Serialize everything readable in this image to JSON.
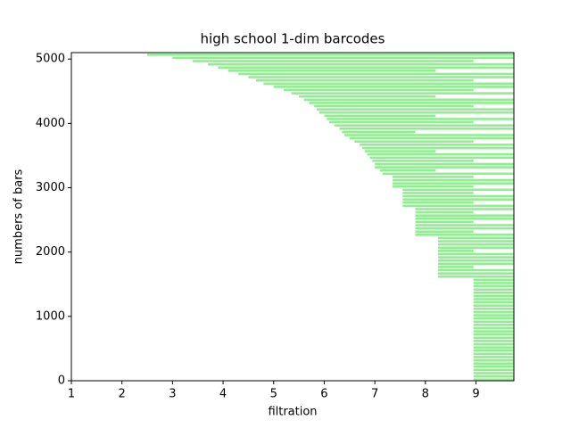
{
  "chart_data": {
    "type": "barcode",
    "title": "high school 1-dim barcodes",
    "x_label": "filtration",
    "y_label": "numbers of bars",
    "color": "#90ee90",
    "xlim": [
      1,
      9.75
    ],
    "ylim": [
      0,
      5100
    ],
    "xticks": [
      1,
      2,
      3,
      4,
      5,
      6,
      7,
      8,
      9
    ],
    "yticks": [
      0,
      1000,
      2000,
      3000,
      4000,
      5000
    ],
    "y": [
      0,
      50,
      100,
      150,
      200,
      250,
      300,
      350,
      400,
      450,
      500,
      550,
      600,
      650,
      700,
      750,
      800,
      850,
      900,
      950,
      1000,
      1050,
      1100,
      1150,
      1200,
      1250,
      1300,
      1350,
      1400,
      1450,
      1500,
      1550,
      1600,
      1650,
      1700,
      1750,
      1800,
      1850,
      1900,
      1950,
      2000,
      2050,
      2100,
      2150,
      2200,
      2250,
      2300,
      2350,
      2400,
      2450,
      2500,
      2550,
      2600,
      2650,
      2700,
      2750,
      2800,
      2850,
      2900,
      2950,
      3000,
      3050,
      3100,
      3150,
      3200,
      3250,
      3300,
      3350,
      3400,
      3450,
      3500,
      3550,
      3600,
      3650,
      3700,
      3750,
      3800,
      3850,
      3900,
      3950,
      4000,
      4050,
      4100,
      4150,
      4200,
      4250,
      4300,
      4350,
      4400,
      4450,
      4500,
      4550,
      4600,
      4650,
      4700,
      4750,
      4800,
      4850,
      4900,
      4950,
      5000,
      5050
    ],
    "births": [
      8.95,
      8.95,
      8.95,
      8.95,
      8.95,
      8.95,
      8.95,
      8.95,
      8.95,
      8.95,
      8.95,
      8.95,
      8.95,
      8.95,
      8.95,
      8.95,
      8.95,
      8.95,
      8.95,
      8.95,
      8.95,
      8.95,
      8.95,
      8.95,
      8.95,
      8.95,
      8.95,
      8.95,
      8.95,
      8.95,
      8.95,
      8.95,
      8.25,
      8.25,
      8.25,
      8.25,
      8.25,
      8.25,
      8.25,
      8.25,
      8.25,
      8.25,
      8.25,
      8.25,
      8.25,
      7.8,
      7.8,
      7.8,
      7.8,
      7.8,
      7.8,
      7.8,
      7.8,
      7.8,
      7.55,
      7.55,
      7.55,
      7.55,
      7.55,
      7.55,
      7.35,
      7.35,
      7.35,
      7.35,
      7.15,
      7.1,
      7.0,
      7.0,
      6.95,
      6.9,
      6.85,
      6.8,
      6.75,
      6.7,
      6.6,
      6.5,
      6.4,
      6.35,
      6.3,
      6.2,
      6.1,
      6.05,
      6.0,
      5.9,
      5.85,
      5.8,
      5.7,
      5.6,
      5.5,
      5.35,
      5.2,
      5.0,
      4.8,
      4.65,
      4.5,
      4.3,
      4.1,
      3.9,
      3.7,
      3.4,
      3.0,
      2.5
    ],
    "deaths": [
      9.75,
      9.75,
      9.75,
      9.75,
      9.75,
      9.75,
      9.75,
      9.75,
      9.75,
      9.75,
      9.75,
      9.75,
      9.75,
      9.75,
      9.75,
      9.75,
      9.75,
      9.75,
      9.75,
      9.75,
      9.75,
      9.75,
      9.75,
      9.75,
      9.75,
      9.75,
      9.75,
      9.75,
      9.75,
      9.75,
      9.75,
      9.75,
      9.75,
      9.75,
      9.75,
      8.95,
      9.75,
      9.75,
      9.75,
      9.75,
      8.95,
      9.75,
      9.75,
      9.75,
      9.75,
      9.75,
      8.95,
      9.75,
      9.75,
      8.95,
      9.75,
      9.75,
      8.95,
      9.75,
      9.75,
      8.95,
      9.75,
      9.75,
      8.95,
      9.75,
      8.95,
      9.75,
      9.75,
      8.95,
      9.75,
      8.2,
      9.75,
      9.75,
      8.95,
      9.75,
      9.75,
      8.2,
      9.75,
      9.75,
      8.95,
      9.75,
      9.75,
      7.8,
      9.75,
      9.75,
      8.95,
      9.75,
      8.2,
      9.75,
      9.75,
      8.95,
      9.75,
      9.75,
      8.2,
      9.75,
      8.95,
      9.75,
      9.75,
      8.95,
      9.75,
      9.75,
      8.2,
      9.75,
      9.75,
      8.95,
      9.75,
      9.75
    ]
  }
}
